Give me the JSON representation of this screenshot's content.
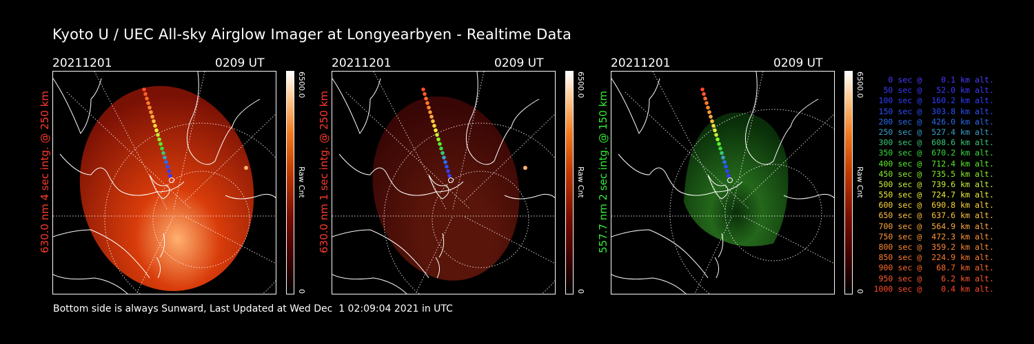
{
  "title": "Kyoto U / UEC All-sky Airglow Imager at Longyearbyen - Realtime Data",
  "panels": [
    {
      "date": "20211201",
      "time": "0209 UT",
      "label": "630.0 nm 4 sec intg. @ 250 km",
      "label_color": "#ff3a2a",
      "cbar_max": "6500.0",
      "cbar_min": "0",
      "cbar_unit": "Raw Cnt",
      "tint": "red",
      "intensity": 0.85
    },
    {
      "date": "20211201",
      "time": "0209 UT",
      "label": "630.0 nm 1 sec intg. @ 250 km",
      "label_color": "#ff3a2a",
      "cbar_max": "6500.0",
      "cbar_min": "0",
      "cbar_unit": "Raw Cnt",
      "tint": "red",
      "intensity": 0.3
    },
    {
      "date": "20211201",
      "time": "0209 UT",
      "label": "557.7 nm 2 sec intg. @ 150 km",
      "label_color": "#33ee33",
      "cbar_max": "6500.0",
      "cbar_min": "0",
      "cbar_unit": "Raw Cnt",
      "tint": "green",
      "intensity": 0.5
    }
  ],
  "footer": "Bottom side is always Sunward, Last Updated at Wed Dec  1 02:09:04 2021 in UTC",
  "legend": [
    {
      "text": "   0 sec @    0.1 km alt.",
      "color": "#4a3cff"
    },
    {
      "text": "  50 sec @   52.0 km alt.",
      "color": "#3a3aff"
    },
    {
      "text": " 100 sec @  160.2 km alt.",
      "color": "#3040ff"
    },
    {
      "text": " 150 sec @  303.8 km alt.",
      "color": "#2a50ff"
    },
    {
      "text": " 200 sec @  426.0 km alt.",
      "color": "#2a6cf0"
    },
    {
      "text": " 250 sec @  527.4 km alt.",
      "color": "#3aa0c8"
    },
    {
      "text": " 300 sec @  608.6 km alt.",
      "color": "#38c878"
    },
    {
      "text": " 350 sec @  670.2 km alt.",
      "color": "#38dc3c"
    },
    {
      "text": " 400 sec @  712.4 km alt.",
      "color": "#5aee2a"
    },
    {
      "text": " 450 sec @  735.5 km alt.",
      "color": "#8af02a"
    },
    {
      "text": " 500 sec @  739.6 km alt.",
      "color": "#c8f03a"
    },
    {
      "text": " 550 sec @  724.7 km alt.",
      "color": "#eef03a"
    },
    {
      "text": " 600 sec @  690.8 km alt.",
      "color": "#ffd83a"
    },
    {
      "text": " 650 sec @  637.6 km alt.",
      "color": "#ffc040"
    },
    {
      "text": " 700 sec @  564.9 km alt.",
      "color": "#ffa840"
    },
    {
      "text": " 750 sec @  472.3 km alt.",
      "color": "#ff9838"
    },
    {
      "text": " 800 sec @  359.2 km alt.",
      "color": "#ff8830"
    },
    {
      "text": " 850 sec @  224.9 km alt.",
      "color": "#ff7a2a"
    },
    {
      "text": " 900 sec @   68.7 km alt.",
      "color": "#ff6a2a"
    },
    {
      "text": " 950 sec @    6.2 km alt.",
      "color": "#ff5a2a"
    },
    {
      "text": "1000 sec @    0.4 km alt.",
      "color": "#ff4a2a"
    }
  ]
}
